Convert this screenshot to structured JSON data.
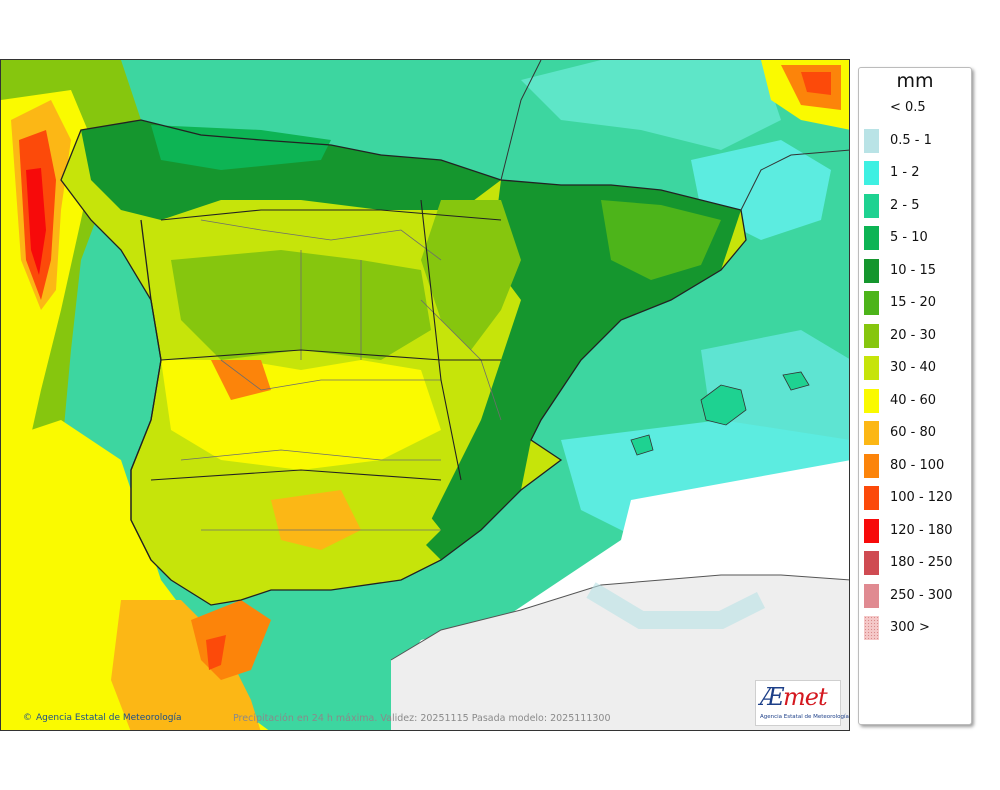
{
  "legend": {
    "unit": "mm",
    "items": [
      {
        "label": "< 0.5",
        "color": "#ffffff"
      },
      {
        "label": "0.5 - 1",
        "color": "#b9e3e6"
      },
      {
        "label": "1 - 2",
        "color": "#3ef0e2"
      },
      {
        "label": "2 - 5",
        "color": "#1ed291"
      },
      {
        "label": "5 - 10",
        "color": "#0db454"
      },
      {
        "label": "10 - 15",
        "color": "#15962e"
      },
      {
        "label": "15 - 20",
        "color": "#4db41a"
      },
      {
        "label": "20 - 30",
        "color": "#86c60e"
      },
      {
        "label": "30 - 40",
        "color": "#c6e40a"
      },
      {
        "label": "40 - 60",
        "color": "#fafa00"
      },
      {
        "label": "60 - 80",
        "color": "#fcb715"
      },
      {
        "label": "80 - 100",
        "color": "#fc840a"
      },
      {
        "label": "100 - 120",
        "color": "#fc4a0a"
      },
      {
        "label": "120 - 180",
        "color": "#f70a0a"
      },
      {
        "label": "180 - 250",
        "color": "#cf4b52"
      },
      {
        "label": "250 - 300",
        "color": "#e08a91"
      },
      {
        "label": "300 >",
        "color": "#f5c8c8"
      }
    ]
  },
  "credits": {
    "agency": "Agencia Estatal de Meteorología",
    "copyright_symbol": "©"
  },
  "caption": "Precipitación en 24 h máxima. Validez: 20251115 Pasada modelo: 2025111300",
  "logo": {
    "wordmark_a": "Æ",
    "wordmark_b": "met",
    "subtitle": "Agencia Estatal de Meteorología"
  }
}
